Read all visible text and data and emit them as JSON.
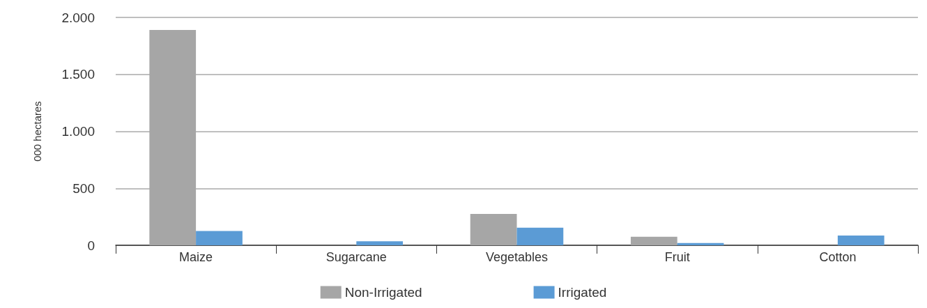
{
  "chart_data": {
    "type": "bar",
    "ylabel": "000 hectares",
    "categories": [
      "Maize",
      "Sugarcane",
      "Vegetables",
      "Fruit",
      "Cotton"
    ],
    "series": [
      {
        "name": "Non-Irrigated",
        "color": "#a6a6a6",
        "values": [
          1890,
          0,
          275,
          75,
          0
        ]
      },
      {
        "name": "Irrigated",
        "color": "#5b9bd5",
        "values": [
          125,
          35,
          155,
          20,
          85
        ]
      }
    ],
    "ylim": [
      0,
      2000
    ],
    "yticks": [
      0,
      {
        "value": 500,
        "label": "500"
      },
      {
        "value": 1000,
        "label": "1.000"
      },
      {
        "value": 1500,
        "label": "1.500"
      },
      {
        "value": 2000,
        "label": "2.000"
      }
    ],
    "grid": "y",
    "legend": "bottom"
  }
}
